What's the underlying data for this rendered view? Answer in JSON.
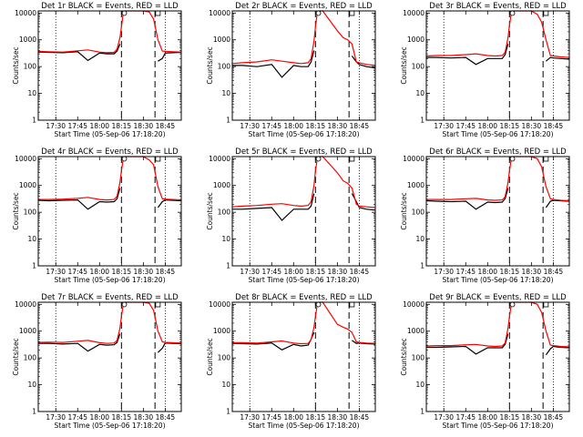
{
  "chart_data": {
    "type": "line",
    "yscale": "log",
    "ylim": [
      1,
      12000
    ],
    "xlim": [
      "17:18",
      "18:56"
    ],
    "ylabel": "Counts/sec",
    "xlabel": "Start Time (05-Sep-06 17:18:20)",
    "x_ticks": [
      "17:30",
      "17:45",
      "18:00",
      "18:15",
      "18:30",
      "18:45"
    ],
    "y_ticks": [
      "1",
      "10",
      "100",
      "1000",
      "10000"
    ],
    "line_colors": {
      "events": "#000000",
      "lld": "#ff0000"
    },
    "series_times": [
      "17:18",
      "17:25",
      "17:35",
      "17:45",
      "17:52",
      "18:00",
      "18:05",
      "18:10",
      "18:12",
      "18:14",
      "18:15",
      "18:16",
      "18:17",
      "18:20",
      "18:30",
      "18:34",
      "18:37",
      "18:40",
      "18:43",
      "18:45",
      "18:50",
      "18:56"
    ],
    "panels": [
      {
        "title": "Det 1r BLACK = Events, RED = LLD",
        "events": [
          350,
          340,
          330,
          360,
          170,
          320,
          300,
          300,
          380,
          700,
          null,
          null,
          null,
          null,
          null,
          null,
          null,
          160,
          200,
          320,
          330,
          340
        ],
        "lld": [
          370,
          360,
          350,
          390,
          420,
          350,
          330,
          340,
          450,
          1200,
          3000,
          8000,
          12000,
          12000,
          12000,
          11000,
          6000,
          1000,
          380,
          370,
          360,
          350
        ]
      },
      {
        "title": "Det 2r BLACK = Events, RED = LLD",
        "events": [
          110,
          110,
          100,
          120,
          40,
          110,
          100,
          100,
          150,
          400,
          null,
          null,
          null,
          null,
          null,
          null,
          null,
          250,
          150,
          120,
          100,
          90
        ],
        "lld": [
          130,
          140,
          150,
          180,
          160,
          140,
          130,
          140,
          200,
          900,
          3000,
          8000,
          12000,
          12000,
          2200,
          1200,
          1000,
          700,
          150,
          140,
          120,
          110
        ]
      },
      {
        "title": "Det 3r BLACK = Events, RED = LLD",
        "events": [
          220,
          220,
          210,
          220,
          120,
          200,
          200,
          200,
          280,
          700,
          null,
          null,
          null,
          null,
          null,
          null,
          null,
          160,
          220,
          210,
          200,
          190
        ],
        "lld": [
          250,
          260,
          260,
          280,
          300,
          260,
          250,
          260,
          340,
          1200,
          3500,
          8000,
          12000,
          12000,
          12000,
          9000,
          4500,
          1000,
          260,
          250,
          230,
          220
        ]
      },
      {
        "title": "Det 4r BLACK = Events, RED = LLD",
        "events": [
          280,
          270,
          280,
          290,
          130,
          250,
          240,
          250,
          320,
          800,
          null,
          null,
          null,
          null,
          null,
          null,
          null,
          150,
          250,
          290,
          280,
          270
        ],
        "lld": [
          300,
          300,
          310,
          330,
          360,
          300,
          290,
          300,
          400,
          1300,
          3500,
          8000,
          12000,
          12000,
          12000,
          9000,
          6000,
          900,
          320,
          310,
          300,
          290
        ]
      },
      {
        "title": "Det 5r BLACK = Events, RED = LLD",
        "events": [
          130,
          130,
          140,
          150,
          50,
          130,
          130,
          130,
          170,
          500,
          null,
          null,
          null,
          null,
          null,
          null,
          null,
          500,
          250,
          150,
          130,
          120
        ],
        "lld": [
          160,
          170,
          180,
          200,
          210,
          180,
          170,
          180,
          250,
          1000,
          3500,
          8000,
          12000,
          12000,
          3000,
          1500,
          1200,
          800,
          200,
          170,
          160,
          150
        ]
      },
      {
        "title": "Det 6r BLACK = Events, RED = LLD",
        "events": [
          270,
          260,
          250,
          260,
          130,
          240,
          230,
          240,
          320,
          800,
          null,
          null,
          null,
          null,
          null,
          null,
          null,
          150,
          260,
          280,
          270,
          260
        ],
        "lld": [
          300,
          300,
          300,
          320,
          330,
          290,
          280,
          290,
          380,
          1300,
          3500,
          8000,
          12000,
          12000,
          12000,
          10000,
          5000,
          900,
          320,
          300,
          280,
          270
        ]
      },
      {
        "title": "Det 7r BLACK = Events, RED = LLD",
        "events": [
          350,
          350,
          330,
          350,
          180,
          320,
          300,
          310,
          380,
          800,
          null,
          null,
          null,
          null,
          null,
          null,
          null,
          160,
          230,
          360,
          350,
          340
        ],
        "lld": [
          380,
          390,
          380,
          420,
          450,
          370,
          350,
          360,
          450,
          1300,
          3500,
          8000,
          12000,
          12000,
          12000,
          11000,
          6000,
          1000,
          400,
          380,
          370,
          360
        ]
      },
      {
        "title": "Det 8r BLACK = Events, RED = LLD",
        "events": [
          350,
          340,
          330,
          360,
          200,
          320,
          280,
          300,
          500,
          900,
          null,
          null,
          null,
          null,
          null,
          null,
          null,
          450,
          350,
          360,
          340,
          330
        ],
        "lld": [
          370,
          370,
          360,
          400,
          430,
          360,
          340,
          350,
          480,
          1400,
          3500,
          8000,
          12000,
          12000,
          1800,
          1400,
          1200,
          900,
          400,
          380,
          360,
          350
        ]
      },
      {
        "title": "Det 9r BLACK = Events, RED = LLD",
        "events": [
          250,
          250,
          260,
          270,
          140,
          240,
          240,
          240,
          320,
          800,
          null,
          null,
          null,
          null,
          null,
          null,
          null,
          130,
          220,
          270,
          250,
          240
        ],
        "lld": [
          280,
          290,
          290,
          310,
          320,
          280,
          270,
          280,
          360,
          1300,
          3500,
          8000,
          12000,
          12000,
          12000,
          10000,
          5000,
          1000,
          300,
          290,
          270,
          260
        ]
      }
    ]
  }
}
